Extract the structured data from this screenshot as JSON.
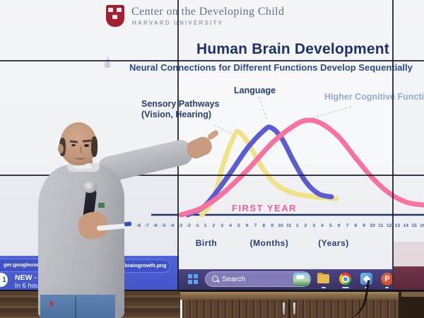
{
  "screen": {
    "logo": {
      "org_name": "Center on the Developing Child",
      "university": "HARVARD UNIVERSITY",
      "shield_color": "#a31f34"
    },
    "title": "Human Brain Development",
    "subtitle": "Neural Connections for Different Functions Develop Sequentially",
    "first_year_label": "FIRST YEAR",
    "cursor_icon": "hand-pointer",
    "chart_data": {
      "type": "line",
      "title": "Human Brain Development",
      "subtitle": "Neural Connections for Different Functions Develop Sequentially",
      "x_ticks": [
        "-8",
        "-7",
        "-6",
        "-5",
        "-4",
        "-3",
        "-2",
        "-1",
        "1",
        "2",
        "3",
        "4",
        "5",
        "6",
        "7",
        "8",
        "9",
        "10",
        "11",
        "1",
        "2",
        "3",
        "4",
        "5",
        "6",
        "7",
        "8",
        "9",
        "10",
        "11",
        "12",
        "13",
        "14",
        "15",
        "16"
      ],
      "x_axis_sections": [
        "Birth",
        "(Months)",
        "(Years)"
      ],
      "annotation": "FIRST YEAR",
      "annotation_color": "#f55c9b",
      "axis_color": "#1e3566",
      "y_axis_visible": false,
      "y_meaning": "relative rate of neural connection formation (0-100 estimated from curve heights)",
      "series": [
        {
          "name": "Sensory Pathways (Vision, Hearing)",
          "label_line1": "Sensory Pathways",
          "label_line2": "(Vision, Hearing)",
          "color": "#f0e286",
          "peak_at": "4-5 months",
          "points": [
            [
              7.6,
              0
            ],
            [
              9.0,
              18
            ],
            [
              10.2,
              55
            ],
            [
              11.5,
              84
            ],
            [
              12.1,
              87
            ],
            [
              13.2,
              75
            ],
            [
              14.8,
              50
            ],
            [
              16.5,
              32
            ],
            [
              18.5,
              23
            ],
            [
              21.0,
              19
            ],
            [
              23.7,
              17
            ]
          ]
        },
        {
          "name": "Language",
          "label_line1": "Language",
          "label_line2": "",
          "color": "#5b5bd8",
          "peak_at": "8-9 months",
          "points": [
            [
              5.9,
              0
            ],
            [
              8.0,
              10
            ],
            [
              10.5,
              38
            ],
            [
              13.0,
              70
            ],
            [
              15.0,
              89
            ],
            [
              15.9,
              92
            ],
            [
              17.2,
              80
            ],
            [
              18.6,
              56
            ],
            [
              20.1,
              34
            ],
            [
              21.6,
              22
            ],
            [
              23.1,
              19
            ]
          ]
        },
        {
          "name": "Higher Cognitive Function",
          "label_line1": "Higher Cognitive Function",
          "label_line2": "",
          "color": "#f8719f",
          "peak_at": "1-2 years",
          "points": [
            [
              5.1,
              0
            ],
            [
              7.5,
              7
            ],
            [
              10.0,
              22
            ],
            [
              13.0,
              47
            ],
            [
              16.0,
              76
            ],
            [
              18.6,
              94
            ],
            [
              20.3,
              100
            ],
            [
              22.0,
              96
            ],
            [
              24.0,
              82
            ],
            [
              26.0,
              60
            ],
            [
              28.0,
              39
            ],
            [
              30.0,
              23
            ],
            [
              32.2,
              13
            ],
            [
              34.6,
              10
            ]
          ]
        }
      ]
    }
  },
  "video_overlay": {
    "bar_color": "#4d60d4",
    "url_fragment_left": "ger.googleuserco",
    "url_fragment_right": "braingrowth.png",
    "badge_count": "1",
    "badge_title": "NEW - FUL",
    "badge_subtitle": "In 6 hours"
  },
  "taskbar": {
    "color": "#45407c",
    "search_label": "Search",
    "powerpoint_letter": "P",
    "icons": [
      "windows-start",
      "search-magnifier",
      "weather-widget",
      "file-explorer",
      "chrome",
      "photos",
      "powerpoint"
    ]
  }
}
